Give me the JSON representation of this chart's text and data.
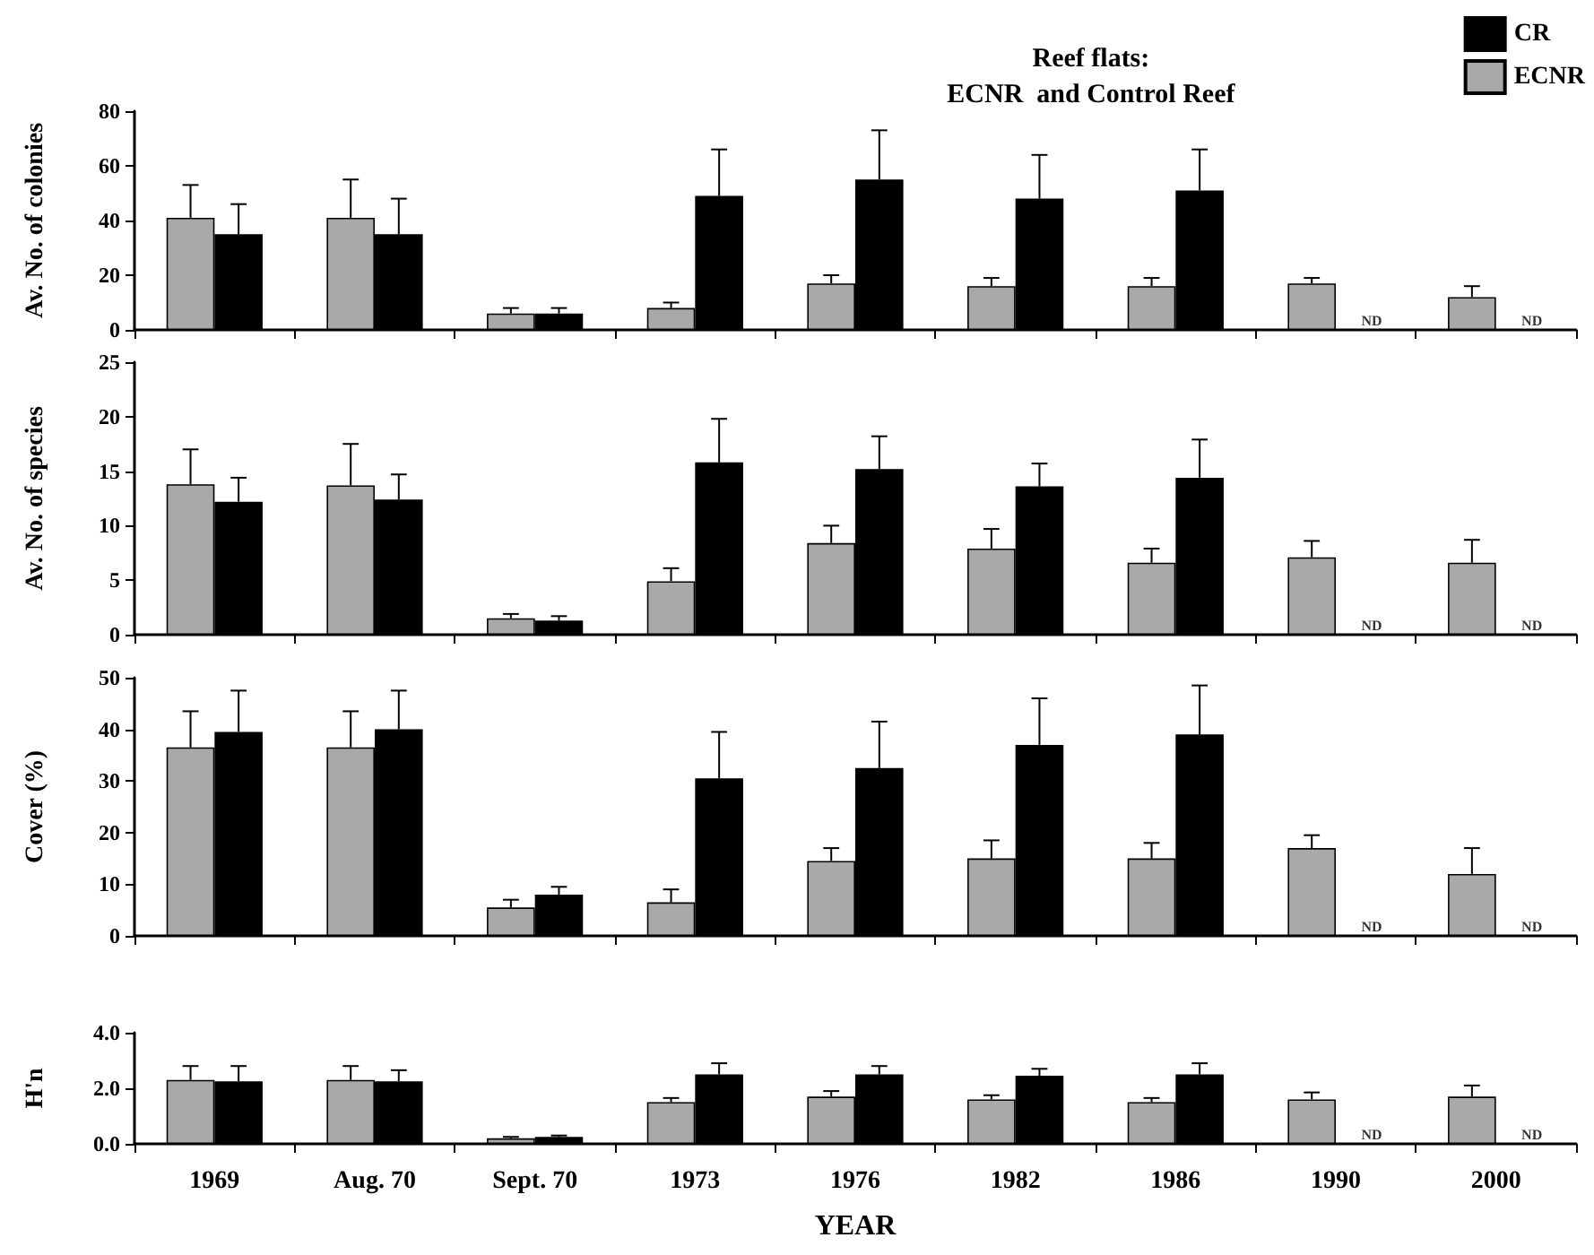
{
  "chart_data": [
    {
      "type": "bar",
      "title": "Reef flats:\nECNR  and Control Reef",
      "ylabel": "Av. No. of colonies",
      "categories": [
        null,
        null,
        null,
        null,
        null,
        null,
        null,
        null,
        null
      ],
      "series": [
        {
          "name": "ECNR",
          "color": "#a9a9a9",
          "values": [
            41,
            41,
            6,
            8,
            17,
            16,
            16,
            17,
            12
          ],
          "errors": [
            12,
            14,
            2,
            2,
            3,
            3,
            3,
            2,
            4
          ]
        },
        {
          "name": "CR",
          "color": "#000000",
          "values": [
            35,
            35,
            6,
            49,
            55,
            48,
            51,
            null,
            null
          ],
          "errors": [
            11,
            13,
            2,
            17,
            18,
            16,
            15,
            null,
            null
          ]
        }
      ],
      "ylim": [
        0,
        80
      ],
      "yticks": [
        0,
        20,
        40,
        60,
        80
      ],
      "legend": "top right",
      "tick_labels": "y",
      "grid": false,
      "annotations": [
        "ND",
        "ND"
      ]
    },
    {
      "type": "bar",
      "ylabel": "Av. No. of species",
      "categories": [
        null,
        null,
        null,
        null,
        null,
        null,
        null,
        null,
        null
      ],
      "series": [
        {
          "color": "#a9a9a9",
          "values": [
            13.8,
            13.7,
            1.5,
            4.9,
            8.4,
            7.9,
            6.6,
            7.1,
            6.6
          ],
          "errors": [
            3.2,
            3.8,
            0.4,
            1.2,
            1.6,
            1.8,
            1.3,
            1.5,
            2.1
          ]
        },
        {
          "color": "#000000",
          "values": [
            12.2,
            12.4,
            1.3,
            15.8,
            15.2,
            13.6,
            14.4,
            null,
            null
          ],
          "errors": [
            2.2,
            2.3,
            0.4,
            4,
            3,
            2.1,
            3.5,
            null,
            null
          ]
        }
      ],
      "ylim": [
        0,
        25
      ],
      "yticks": [
        0,
        5,
        10,
        15,
        20,
        25
      ],
      "tick_labels": "y",
      "grid": false,
      "annotations": [
        "ND",
        "ND"
      ]
    },
    {
      "type": "bar",
      "ylabel": "Cover (%)",
      "categories": [
        null,
        null,
        null,
        null,
        null,
        null,
        null,
        null,
        null
      ],
      "series": [
        {
          "color": "#a9a9a9",
          "values": [
            36.5,
            36.5,
            5.5,
            6.5,
            14.5,
            15,
            15,
            17,
            12
          ],
          "errors": [
            7,
            7,
            1.5,
            2.5,
            2.5,
            3.5,
            3,
            2.5,
            5
          ]
        },
        {
          "color": "#000000",
          "values": [
            39.5,
            40,
            8,
            30.5,
            32.5,
            37,
            39,
            null,
            null
          ],
          "errors": [
            8,
            7.5,
            1.5,
            9,
            9,
            9,
            9.5,
            null,
            null
          ]
        }
      ],
      "ylim": [
        0,
        50
      ],
      "yticks": [
        0,
        10,
        20,
        30,
        40,
        50
      ],
      "tick_labels": "y",
      "grid": false,
      "annotations": [
        "ND",
        "ND"
      ]
    },
    {
      "type": "bar",
      "ylabel": "H'n",
      "xlabel": "YEAR",
      "categories": [
        "1969",
        "Aug. 70",
        "Sept. 70",
        "1973",
        "1976",
        "1982",
        "1986",
        "1990",
        "2000"
      ],
      "series": [
        {
          "color": "#a9a9a9",
          "values": [
            2.3,
            2.3,
            0.2,
            1.5,
            1.7,
            1.6,
            1.5,
            1.6,
            1.7
          ],
          "errors": [
            0.5,
            0.5,
            0.05,
            0.15,
            0.2,
            0.15,
            0.15,
            0.25,
            0.4
          ]
        },
        {
          "color": "#000000",
          "values": [
            2.25,
            2.25,
            0.25,
            2.5,
            2.5,
            2.45,
            2.5,
            null,
            null
          ],
          "errors": [
            0.55,
            0.4,
            0.05,
            0.4,
            0.3,
            0.25,
            0.4,
            null,
            null
          ]
        }
      ],
      "ylim": [
        0,
        4
      ],
      "yticks": [
        {
          "value": 0,
          "label": "0.0"
        },
        {
          "value": 2,
          "label": "2.0"
        },
        {
          "value": 4,
          "label": "4.0"
        }
      ],
      "grid": false,
      "annotations": [
        {
          "text": "ND",
          "x": "1990",
          "y": 0
        },
        {
          "text": "ND",
          "x": "2000",
          "y": 0
        }
      ]
    }
  ]
}
